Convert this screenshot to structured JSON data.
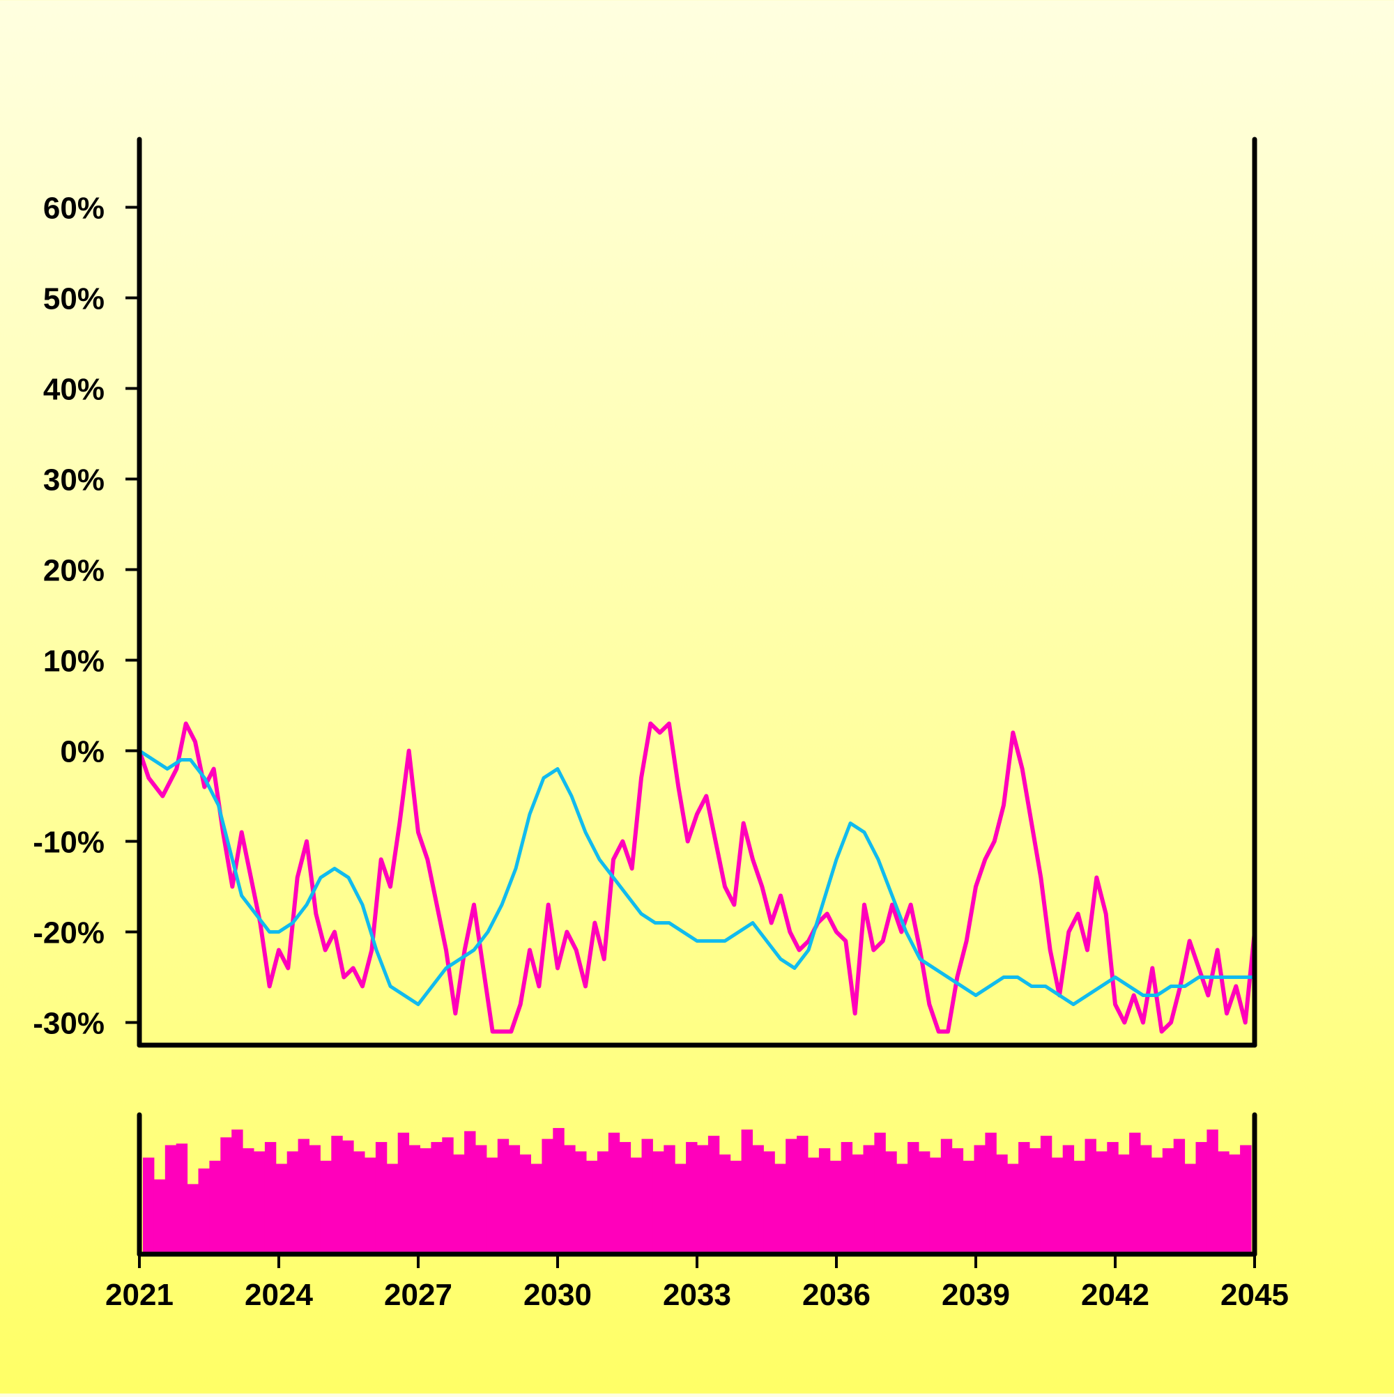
{
  "chart_data": {
    "type": "line",
    "x_unit": "year",
    "xlim": [
      2021,
      2045
    ],
    "ylim": [
      -32.5,
      67.5
    ],
    "x_ticks": [
      "2021",
      "2024",
      "2027",
      "2030",
      "2033",
      "2036",
      "2039",
      "2042",
      "2045"
    ],
    "y_ticks": [
      "60%",
      "50%",
      "40%",
      "30%",
      "20%",
      "10%",
      "0%",
      "-10%",
      "-20%",
      "-30%"
    ],
    "grid": false,
    "legend": "none",
    "colors": {
      "series_main": "#ff00bb",
      "series_smooth": "#11bbee",
      "volume": "#ff00bb",
      "axes": "#000000"
    },
    "series": [
      {
        "values_x": [
          2021.0,
          2021.2,
          2021.5,
          2021.8,
          2022.0,
          2022.2,
          2022.4,
          2022.6,
          2022.8,
          2023.0,
          2023.2,
          2023.4,
          2023.6,
          2023.8,
          2024.0,
          2024.2,
          2024.4,
          2024.6,
          2024.8,
          2025.0,
          2025.2,
          2025.4,
          2025.6,
          2025.8,
          2026.0,
          2026.2,
          2026.4,
          2026.6,
          2026.8,
          2027.0,
          2027.2,
          2027.4,
          2027.6,
          2027.8,
          2028.0,
          2028.2,
          2028.4,
          2028.6,
          2028.8,
          2029.0,
          2029.2,
          2029.4,
          2029.6,
          2029.8,
          2030.0,
          2030.2,
          2030.4,
          2030.6,
          2030.8,
          2031.0,
          2031.2,
          2031.4,
          2031.6,
          2031.8,
          2032.0,
          2032.2,
          2032.4,
          2032.6,
          2032.8,
          2033.0,
          2033.2,
          2033.4,
          2033.6,
          2033.8,
          2034.0,
          2034.2,
          2034.4,
          2034.6,
          2034.8,
          2035.0,
          2035.2,
          2035.4,
          2035.6,
          2035.8,
          2036.0,
          2036.2,
          2036.4,
          2036.6,
          2036.8,
          2037.0,
          2037.2,
          2037.4,
          2037.6,
          2037.8,
          2038.0,
          2038.2,
          2038.4,
          2038.6,
          2038.8,
          2039.0,
          2039.2,
          2039.4,
          2039.6,
          2039.8,
          2040.0,
          2040.2,
          2040.4,
          2040.6,
          2040.8,
          2041.0,
          2041.2,
          2041.4,
          2041.6,
          2041.8,
          2042.0,
          2042.2,
          2042.4,
          2042.6,
          2042.8,
          2043.0,
          2043.2,
          2043.4,
          2043.6,
          2043.8,
          2044.0,
          2044.2,
          2044.4,
          2044.6,
          2044.8,
          2045.0
        ],
        "values_y": [
          0,
          -3,
          -5,
          -2,
          3,
          1,
          -4,
          -2,
          -9,
          -15,
          -9,
          -14,
          -19,
          -26,
          -22,
          -24,
          -14,
          -10,
          -18,
          -22,
          -20,
          -25,
          -24,
          -26,
          -22,
          -12,
          -15,
          -8,
          0,
          -9,
          -12,
          -17,
          -22,
          -29,
          -22,
          -17,
          -24,
          -31,
          -31,
          -31,
          -28,
          -22,
          -26,
          -17,
          -24,
          -20,
          -22,
          -26,
          -19,
          -23,
          -12,
          -10,
          -13,
          -3,
          3,
          2,
          3,
          -4,
          -10,
          -7,
          -5,
          -10,
          -15,
          -17,
          -8,
          -12,
          -15,
          -19,
          -16,
          -20,
          -22,
          -21,
          -19,
          -18,
          -20,
          -21,
          -29,
          -17,
          -22,
          -21,
          -17,
          -20,
          -17,
          -22,
          -28,
          -31,
          -31,
          -25,
          -21,
          -15,
          -12,
          -10,
          -6,
          2,
          -2,
          -8,
          -14,
          -22,
          -27,
          -20,
          -18,
          -22,
          -14,
          -18,
          -28,
          -30,
          -27,
          -30,
          -24,
          -31,
          -30,
          -26,
          -21,
          -24,
          -27,
          -22,
          -29,
          -26,
          -30,
          -20
        ],
        "x_shift_note": ""
      },
      {
        "values_x": [
          2021.0,
          2021.3,
          2021.6,
          2021.9,
          2022.1,
          2022.4,
          2022.7,
          2022.9,
          2023.2,
          2023.5,
          2023.8,
          2024.0,
          2024.3,
          2024.6,
          2024.9,
          2025.2,
          2025.5,
          2025.8,
          2026.1,
          2026.4,
          2026.7,
          2027.0,
          2027.3,
          2027.6,
          2027.9,
          2028.2,
          2028.5,
          2028.8,
          2029.1,
          2029.4,
          2029.7,
          2030.0,
          2030.3,
          2030.6,
          2030.9,
          2031.2,
          2031.5,
          2031.8,
          2032.1,
          2032.4,
          2032.7,
          2033.0,
          2033.3,
          2033.6,
          2033.9,
          2034.2,
          2034.5,
          2034.8,
          2035.1,
          2035.4,
          2035.7,
          2036.0,
          2036.3,
          2036.6,
          2036.9,
          2037.2,
          2037.5,
          2037.8,
          2038.1,
          2038.4,
          2038.7,
          2039.0,
          2039.3,
          2039.6,
          2039.9,
          2040.2,
          2040.5,
          2040.8,
          2041.1,
          2041.4,
          2041.7,
          2042.0,
          2042.3,
          2042.6,
          2042.9,
          2043.2,
          2043.5,
          2043.8,
          2044.1,
          2044.4,
          2044.7,
          2045.0
        ],
        "values_y": [
          0,
          -1,
          -2,
          -1,
          -1,
          -3,
          -6,
          -10,
          -16,
          -18,
          -20,
          -20,
          -19,
          -17,
          -14,
          -13,
          -14,
          -17,
          -22,
          -26,
          -27,
          -28,
          -26,
          -24,
          -23,
          -22,
          -20,
          -17,
          -13,
          -7,
          -3,
          -2,
          -5,
          -9,
          -12,
          -14,
          -16,
          -18,
          -19,
          -19,
          -20,
          -21,
          -21,
          -21,
          -20,
          -19,
          -21,
          -23,
          -24,
          -22,
          -17,
          -12,
          -8,
          -9,
          -12,
          -16,
          -20,
          -23,
          -24,
          -25,
          -26,
          -27,
          -26,
          -25,
          -25,
          -26,
          -26,
          -27,
          -28,
          -27,
          -26,
          -25,
          -26,
          -27,
          -27,
          -26,
          -26,
          -25,
          -25,
          -25,
          -25,
          -25
        ]
      }
    ],
    "volume": [
      62,
      48,
      70,
      71,
      45,
      55,
      60,
      75,
      80,
      68,
      66,
      72,
      58,
      66,
      74,
      70,
      60,
      76,
      73,
      66,
      62,
      72,
      58,
      78,
      70,
      68,
      72,
      75,
      64,
      79,
      70,
      62,
      74,
      70,
      64,
      58,
      74,
      81,
      70,
      66,
      60,
      66,
      78,
      72,
      62,
      74,
      66,
      70,
      58,
      72,
      70,
      76,
      64,
      60,
      80,
      70,
      66,
      58,
      74,
      76,
      62,
      68,
      60,
      72,
      64,
      70,
      78,
      66,
      58,
      72,
      66,
      62,
      74,
      68,
      60,
      70,
      78,
      64,
      58,
      72,
      68,
      76,
      62,
      70,
      60,
      74,
      66,
      72,
      64,
      78,
      70,
      62,
      68,
      74,
      58,
      72,
      80,
      66,
      64,
      70
    ]
  }
}
